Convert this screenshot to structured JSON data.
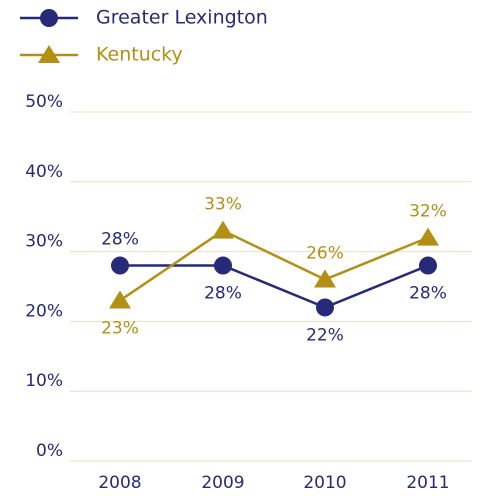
{
  "chart_data": {
    "type": "line",
    "categories": [
      "2008",
      "2009",
      "2010",
      "2011"
    ],
    "series": [
      {
        "name": "Greater Lexington",
        "color": "#262a78",
        "marker": "circle",
        "values": [
          28,
          28,
          22,
          28
        ],
        "value_labels": [
          "28%",
          "28%",
          "22%",
          "28%"
        ]
      },
      {
        "name": "Kentucky",
        "color": "#b38f13",
        "marker": "triangle",
        "values": [
          23,
          33,
          26,
          32
        ],
        "value_labels": [
          "23%",
          "33%",
          "26%",
          "32%"
        ]
      }
    ],
    "ylim": [
      0,
      50
    ],
    "yticks": [
      {
        "value": 0,
        "label": "0%"
      },
      {
        "value": 10,
        "label": "10%"
      },
      {
        "value": 20,
        "label": "20%"
      },
      {
        "value": 30,
        "label": "30%"
      },
      {
        "value": 40,
        "label": "40%"
      },
      {
        "value": 50,
        "label": "50%"
      }
    ],
    "grid": true,
    "legend": "top-left"
  }
}
